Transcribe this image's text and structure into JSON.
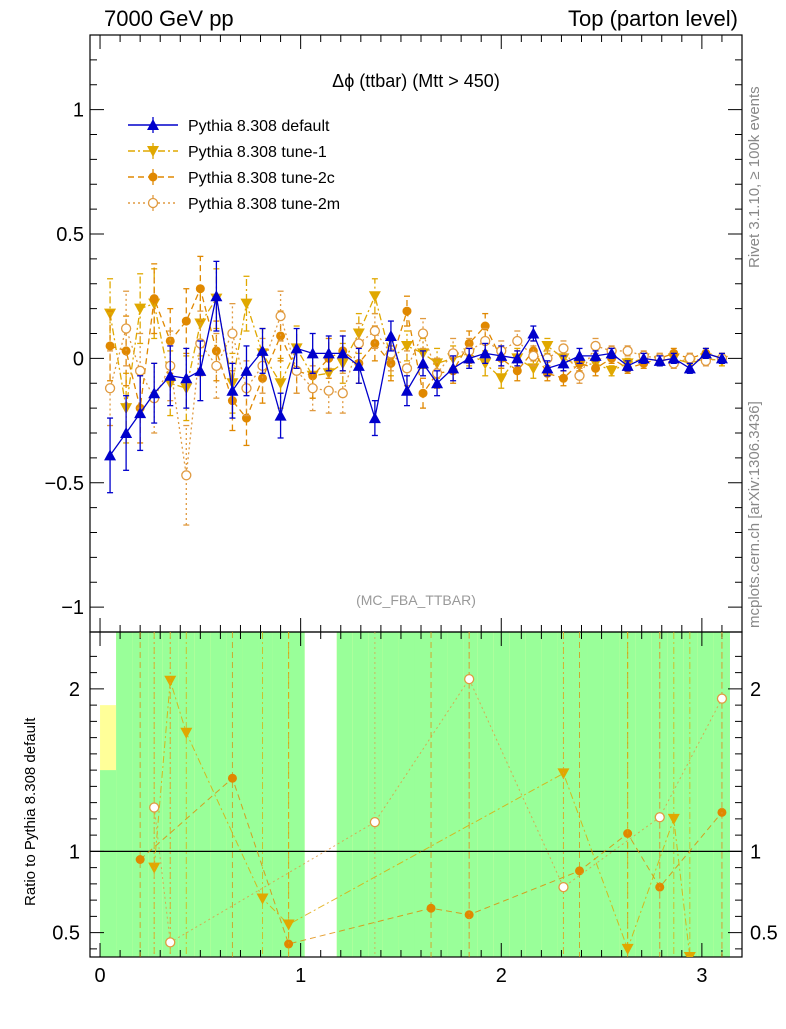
{
  "header": {
    "left": "7000 GeV pp",
    "right": "Top (parton level)"
  },
  "side_labels": {
    "rivet": "Rivet 3.1.10, ≥ 100k events",
    "mcplots": "mcplots.cern.ch [arXiv:1306.3436]"
  },
  "colors": {
    "default": "#0000cc",
    "tune1": "#e0a800",
    "tune2c": "#e08800",
    "tune2m": "#e09a40",
    "band_inner": "#99ff99",
    "band_outer": "#ffff99"
  },
  "chart_data": [
    {
      "type": "line",
      "title": "Δϕ (ttbar) (Mtt > 450)",
      "watermark": "(MC_FBA_TTBAR)",
      "xlim": [
        -0.05,
        3.2
      ],
      "ylim": [
        -1.1,
        1.3
      ],
      "yticks": [
        -1,
        -0.5,
        0,
        0.5,
        1
      ],
      "ytick_labels": [
        "−1",
        "−0.5",
        "0",
        "0.5",
        "1"
      ],
      "legend_placement": "top-left",
      "x": [
        0.05,
        0.13,
        0.2,
        0.27,
        0.35,
        0.43,
        0.5,
        0.58,
        0.66,
        0.73,
        0.81,
        0.9,
        0.98,
        1.06,
        1.14,
        1.21,
        1.29,
        1.37,
        1.45,
        1.53,
        1.61,
        1.68,
        1.76,
        1.84,
        1.92,
        2.0,
        2.08,
        2.16,
        2.23,
        2.31,
        2.39,
        2.47,
        2.55,
        2.63,
        2.71,
        2.79,
        2.86,
        2.94,
        3.02,
        3.1
      ],
      "series": [
        {
          "name": "Pythia 8.308 default",
          "key": "default",
          "marker": "triangle-up",
          "line": "solid",
          "values": [
            -0.39,
            -0.3,
            -0.22,
            -0.14,
            -0.07,
            -0.08,
            -0.05,
            0.25,
            -0.13,
            -0.05,
            0.03,
            -0.23,
            0.04,
            0.02,
            0.02,
            0.02,
            -0.03,
            -0.24,
            0.09,
            -0.13,
            -0.02,
            -0.1,
            -0.04,
            0.0,
            0.02,
            0.01,
            0.0,
            0.1,
            -0.04,
            -0.02,
            0.01,
            0.01,
            0.02,
            -0.03,
            0.0,
            -0.01,
            0.0,
            -0.04,
            0.02,
            0.0
          ],
          "errors": [
            0.15,
            0.15,
            0.15,
            0.12,
            0.12,
            0.12,
            0.12,
            0.14,
            0.11,
            0.1,
            0.09,
            0.09,
            0.08,
            0.08,
            0.07,
            0.07,
            0.07,
            0.07,
            0.06,
            0.06,
            0.05,
            0.05,
            0.05,
            0.04,
            0.04,
            0.04,
            0.03,
            0.03,
            0.03,
            0.03,
            0.03,
            0.02,
            0.02,
            0.02,
            0.02,
            0.02,
            0.02,
            0.02,
            0.02,
            0.02
          ]
        },
        {
          "name": "Pythia 8.308 tune-1",
          "key": "tune1",
          "marker": "triangle-down",
          "line": "dashdot",
          "values": [
            0.18,
            -0.2,
            0.2,
            0.22,
            -0.1,
            -0.12,
            0.14,
            0.24,
            -0.1,
            0.22,
            0.02,
            -0.1,
            0.04,
            -0.07,
            -0.06,
            -0.02,
            0.1,
            0.25,
            0.0,
            0.05,
            0.02,
            -0.02,
            0.0,
            0.02,
            -0.02,
            -0.08,
            0.0,
            -0.04,
            0.05,
            0.0,
            -0.03,
            -0.02,
            -0.05,
            -0.02,
            0.0,
            -0.01,
            0.0,
            -0.02,
            0.0,
            -0.01
          ],
          "errors": [
            0.14,
            0.14,
            0.14,
            0.14,
            0.13,
            0.13,
            0.13,
            0.12,
            0.12,
            0.11,
            0.1,
            0.1,
            0.09,
            0.09,
            0.08,
            0.08,
            0.08,
            0.07,
            0.07,
            0.06,
            0.06,
            0.06,
            0.05,
            0.05,
            0.05,
            0.04,
            0.04,
            0.04,
            0.03,
            0.03,
            0.03,
            0.03,
            0.02,
            0.02,
            0.02,
            0.02,
            0.02,
            0.02,
            0.02,
            0.02
          ]
        },
        {
          "name": "Pythia 8.308 tune-2c",
          "key": "tune2c",
          "marker": "circle",
          "line": "dashed",
          "values": [
            0.05,
            0.03,
            -0.2,
            0.24,
            0.07,
            0.15,
            0.28,
            0.03,
            -0.17,
            -0.24,
            -0.08,
            0.09,
            -0.05,
            -0.07,
            0.0,
            0.03,
            -0.02,
            0.06,
            -0.02,
            0.19,
            -0.14,
            -0.06,
            -0.05,
            0.06,
            0.13,
            0.0,
            -0.05,
            0.03,
            -0.06,
            -0.08,
            -0.02,
            -0.04,
            0.0,
            -0.04,
            -0.02,
            0.0,
            0.02,
            0.0,
            0.02,
            0.0
          ],
          "errors": [
            0.14,
            0.14,
            0.14,
            0.14,
            0.13,
            0.13,
            0.13,
            0.12,
            0.12,
            0.11,
            0.1,
            0.1,
            0.09,
            0.09,
            0.08,
            0.08,
            0.08,
            0.07,
            0.07,
            0.06,
            0.06,
            0.06,
            0.05,
            0.05,
            0.05,
            0.04,
            0.04,
            0.04,
            0.03,
            0.03,
            0.03,
            0.03,
            0.02,
            0.02,
            0.02,
            0.02,
            0.02,
            0.02,
            0.02,
            0.02
          ]
        },
        {
          "name": "Pythia 8.308 tune-2m",
          "key": "tune2m",
          "marker": "open-circle",
          "line": "dotted",
          "values": [
            -0.12,
            0.12,
            -0.05,
            -0.16,
            -0.03,
            -0.47,
            0.06,
            -0.03,
            0.1,
            -0.12,
            -0.03,
            0.17,
            -0.05,
            -0.12,
            -0.13,
            -0.14,
            0.06,
            0.11,
            0.02,
            -0.04,
            0.1,
            -0.06,
            0.02,
            0.03,
            0.07,
            0.03,
            0.07,
            0.01,
            0.0,
            0.04,
            -0.07,
            0.05,
            0.03,
            0.03,
            0.01,
            0.0,
            -0.02,
            0.0,
            -0.01,
            0.0
          ],
          "errors": [
            0.15,
            0.15,
            0.15,
            0.14,
            0.14,
            0.2,
            0.13,
            0.13,
            0.12,
            0.11,
            0.11,
            0.1,
            0.09,
            0.09,
            0.09,
            0.08,
            0.08,
            0.07,
            0.07,
            0.07,
            0.06,
            0.06,
            0.06,
            0.05,
            0.05,
            0.04,
            0.04,
            0.04,
            0.03,
            0.03,
            0.03,
            0.03,
            0.02,
            0.02,
            0.02,
            0.02,
            0.02,
            0.02,
            0.02,
            0.02
          ]
        }
      ]
    },
    {
      "type": "line",
      "ylabel": "Ratio to Pythia 8.308 default",
      "xlim": [
        -0.05,
        3.2
      ],
      "ylim": [
        0.35,
        2.35
      ],
      "xticks": [
        0,
        1,
        2,
        3
      ],
      "xtick_labels": [
        "0",
        "1",
        "2",
        "3"
      ],
      "yticks": [
        0.5,
        1,
        2
      ],
      "ytick_labels": [
        "0.5",
        "1",
        "2"
      ],
      "bins": [
        0.0,
        0.08,
        0.16,
        0.24,
        0.31,
        0.39,
        0.47,
        0.55,
        0.63,
        0.71,
        0.79,
        0.86,
        0.94,
        1.02,
        1.1,
        1.18,
        1.26,
        1.34,
        1.41,
        1.49,
        1.57,
        1.65,
        1.73,
        1.81,
        1.88,
        1.96,
        2.04,
        2.12,
        2.2,
        2.28,
        2.36,
        2.43,
        2.51,
        2.59,
        2.67,
        2.75,
        2.83,
        2.91,
        2.98,
        3.06,
        3.14
      ],
      "band_inner": [
        [
          0.35,
          1.5
        ],
        [
          0.35,
          2.35
        ],
        [
          0.35,
          2.35
        ],
        [
          0.35,
          2.35
        ],
        [
          0.35,
          2.35
        ],
        [
          0.35,
          2.35
        ],
        [
          0.35,
          2.35
        ],
        [
          0.35,
          2.35
        ],
        [
          0.35,
          2.35
        ],
        [
          0.35,
          2.35
        ],
        [
          0.35,
          2.35
        ],
        [
          0.35,
          2.35
        ],
        [
          0.35,
          2.35
        ],
        [
          null,
          null
        ],
        [
          null,
          null
        ],
        [
          0.35,
          2.35
        ],
        [
          0.35,
          2.35
        ],
        [
          0.35,
          2.35
        ],
        [
          0.35,
          2.35
        ],
        [
          0.35,
          2.35
        ],
        [
          0.35,
          2.35
        ],
        [
          0.35,
          2.35
        ],
        [
          0.35,
          2.35
        ],
        [
          0.35,
          2.35
        ],
        [
          0.35,
          2.35
        ],
        [
          0.35,
          2.35
        ],
        [
          0.35,
          2.35
        ],
        [
          0.35,
          2.35
        ],
        [
          0.35,
          2.35
        ],
        [
          0.35,
          2.35
        ],
        [
          0.35,
          2.35
        ],
        [
          0.35,
          2.35
        ],
        [
          0.35,
          2.35
        ],
        [
          0.35,
          2.35
        ],
        [
          0.35,
          2.35
        ],
        [
          0.35,
          2.35
        ],
        [
          0.35,
          2.35
        ],
        [
          0.35,
          2.35
        ],
        [
          0.35,
          2.35
        ],
        [
          0.35,
          2.35
        ]
      ],
      "band_outer": [
        [
          0.35,
          1.9
        ],
        [
          0.35,
          2.35
        ],
        [
          0.35,
          2.35
        ],
        [
          0.35,
          2.35
        ],
        [
          0.35,
          2.35
        ],
        [
          0.35,
          2.35
        ],
        [
          0.35,
          2.35
        ],
        [
          0.35,
          2.35
        ],
        [
          0.35,
          2.35
        ],
        [
          0.35,
          2.35
        ],
        [
          0.35,
          2.35
        ],
        [
          0.35,
          2.35
        ],
        [
          0.35,
          2.35
        ],
        [
          null,
          null
        ],
        [
          null,
          null
        ],
        [
          0.35,
          2.35
        ],
        [
          0.35,
          2.35
        ],
        [
          0.35,
          2.35
        ],
        [
          0.35,
          2.35
        ],
        [
          0.35,
          2.35
        ],
        [
          0.35,
          2.35
        ],
        [
          0.35,
          2.35
        ],
        [
          0.35,
          2.35
        ],
        [
          0.35,
          2.35
        ],
        [
          0.35,
          2.35
        ],
        [
          0.35,
          2.35
        ],
        [
          0.35,
          2.35
        ],
        [
          0.35,
          2.35
        ],
        [
          0.35,
          2.35
        ],
        [
          0.35,
          2.35
        ],
        [
          0.35,
          2.35
        ],
        [
          0.35,
          2.35
        ],
        [
          0.35,
          2.35
        ],
        [
          0.35,
          2.35
        ],
        [
          0.35,
          2.35
        ],
        [
          0.35,
          2.35
        ],
        [
          0.35,
          2.35
        ],
        [
          0.35,
          2.35
        ],
        [
          0.35,
          2.35
        ],
        [
          0.35,
          2.35
        ]
      ],
      "points": [
        {
          "key": "tune2c",
          "x": [
            0.2,
            0.66,
            0.94,
            1.65,
            1.84,
            2.39,
            2.63,
            2.79,
            3.1
          ],
          "y": [
            0.95,
            1.45,
            0.43,
            0.65,
            0.61,
            0.88,
            1.11,
            0.78,
            1.24
          ]
        },
        {
          "key": "tune1",
          "x": [
            0.27,
            0.35,
            0.43,
            0.81,
            0.94,
            2.31,
            2.63,
            2.86,
            2.94
          ],
          "y": [
            0.9,
            2.05,
            1.73,
            0.71,
            0.55,
            1.48,
            0.4,
            1.2,
            0.35
          ]
        },
        {
          "key": "tune2m",
          "x": [
            0.27,
            0.35,
            1.37,
            1.84,
            2.31,
            2.79,
            3.1
          ],
          "y": [
            1.27,
            0.44,
            1.18,
            2.06,
            0.78,
            1.21,
            1.94
          ]
        }
      ]
    }
  ]
}
